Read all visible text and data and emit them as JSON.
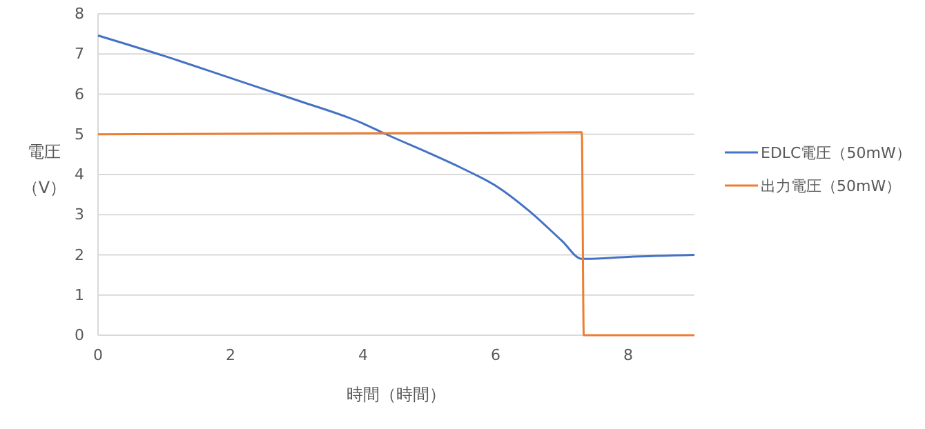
{
  "chart_data": {
    "type": "line",
    "xlabel": "時間（時間）",
    "ylabel": "電圧（V）",
    "xlim": [
      0,
      9
    ],
    "xticks": [
      0,
      2,
      4,
      6,
      8
    ],
    "ylim": [
      0,
      8
    ],
    "yticks": [
      0,
      1,
      2,
      3,
      4,
      5,
      6,
      7,
      8
    ],
    "grid": "y",
    "legend": "right",
    "series": [
      {
        "name": "EDLC電圧（50mW）",
        "color": "#4472c4",
        "x": [
          0,
          1,
          2,
          3,
          4,
          4.35,
          5,
          5.5,
          6,
          6.5,
          7,
          7.3,
          7.35,
          8,
          9
        ],
        "values": [
          7.46,
          6.95,
          6.4,
          5.85,
          5.27,
          5.0,
          4.53,
          4.15,
          3.72,
          3.1,
          2.35,
          1.9,
          1.9,
          1.95,
          2.0
        ]
      },
      {
        "name": "出力電圧（50mW）",
        "color": "#ed7d31",
        "x": [
          0,
          7.3,
          7.33,
          9
        ],
        "values": [
          5.0,
          5.05,
          0,
          0
        ]
      }
    ]
  }
}
